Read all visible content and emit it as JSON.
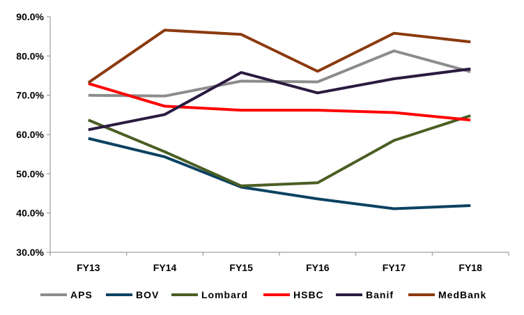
{
  "chart_data": {
    "type": "line",
    "categories": [
      "FY13",
      "FY14",
      "FY15",
      "FY16",
      "FY17",
      "FY18"
    ],
    "ylim": [
      0.3,
      0.9
    ],
    "yticks": [
      "30.0%",
      "40.0%",
      "50.0%",
      "60.0%",
      "70.0%",
      "80.0%",
      "90.0%"
    ],
    "ytick_values": [
      0.3,
      0.4,
      0.5,
      0.6,
      0.7,
      0.8,
      0.9
    ],
    "grid": false,
    "legend_position": "bottom",
    "series": [
      {
        "name": "APS",
        "color": "#8c8c8c",
        "values": [
          0.7,
          0.698,
          0.736,
          0.734,
          0.813,
          0.76
        ]
      },
      {
        "name": "BOV",
        "color": "#0b4262",
        "values": [
          0.59,
          0.543,
          0.466,
          0.436,
          0.411,
          0.419
        ]
      },
      {
        "name": "Lombard",
        "color": "#4a5e23",
        "values": [
          0.637,
          0.556,
          0.469,
          0.477,
          0.585,
          0.648
        ]
      },
      {
        "name": "HSBC",
        "color": "#ff0000",
        "values": [
          0.73,
          0.672,
          0.662,
          0.662,
          0.656,
          0.637
        ]
      },
      {
        "name": "Banif",
        "color": "#2a1a40",
        "values": [
          0.612,
          0.651,
          0.758,
          0.706,
          0.742,
          0.767
        ]
      },
      {
        "name": "MedBank",
        "color": "#8b3a0f",
        "values": [
          0.732,
          0.866,
          0.855,
          0.761,
          0.858,
          0.836
        ]
      }
    ]
  }
}
